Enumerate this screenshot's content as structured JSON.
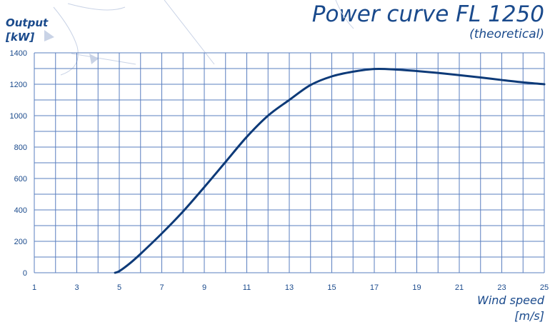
{
  "chart_data": {
    "type": "line",
    "title": "Power curve FL 1250",
    "subtitle": "(theoretical)",
    "ylabel_line1": "Output",
    "ylabel_line2": "[kW]",
    "xlabel_line1": "Wind speed",
    "xlabel_line2": "[m/s]",
    "xlim": [
      1,
      25
    ],
    "ylim": [
      0,
      1400
    ],
    "x_ticks": [
      1,
      3,
      5,
      7,
      9,
      11,
      13,
      15,
      17,
      19,
      21,
      23,
      25
    ],
    "y_ticks": [
      0,
      200,
      400,
      600,
      800,
      1000,
      1200,
      1400
    ],
    "grid": true,
    "series": [
      {
        "color": "#0d3a78",
        "x": [
          4.8,
          5,
          5.5,
          6,
          7,
          8,
          9,
          10,
          11,
          12,
          13,
          14,
          15,
          16,
          17,
          18,
          19,
          20,
          21,
          22,
          23,
          24,
          25
        ],
        "y": [
          0,
          10,
          60,
          120,
          250,
          390,
          545,
          705,
          865,
          1000,
          1100,
          1195,
          1250,
          1280,
          1297,
          1294,
          1284,
          1272,
          1258,
          1243,
          1227,
          1212,
          1200
        ]
      }
    ]
  }
}
